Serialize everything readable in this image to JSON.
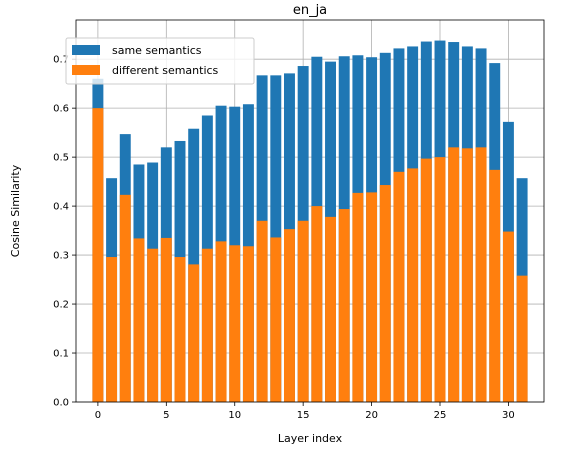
{
  "chart_data": {
    "type": "bar",
    "title": "en_ja",
    "xlabel": "Layer index",
    "ylabel": "Cosine Similarity",
    "xlim": [
      -1.6,
      32.6
    ],
    "ylim": [
      0,
      0.78
    ],
    "xticks": [
      0,
      5,
      10,
      15,
      20,
      25,
      30
    ],
    "yticks": [
      0.0,
      0.1,
      0.2,
      0.3,
      0.4,
      0.5,
      0.6,
      0.7
    ],
    "grid": true,
    "legend_position": "top-left",
    "x": [
      0,
      1,
      2,
      3,
      4,
      5,
      6,
      7,
      8,
      9,
      10,
      11,
      12,
      13,
      14,
      15,
      16,
      17,
      18,
      19,
      20,
      21,
      22,
      23,
      24,
      25,
      26,
      27,
      28,
      29,
      30,
      31
    ],
    "series": [
      {
        "name": "same semantics",
        "color": "#1f77b4",
        "values": [
          0.66,
          0.457,
          0.547,
          0.485,
          0.489,
          0.52,
          0.533,
          0.558,
          0.585,
          0.605,
          0.603,
          0.608,
          0.667,
          0.667,
          0.671,
          0.686,
          0.705,
          0.695,
          0.706,
          0.708,
          0.704,
          0.713,
          0.722,
          0.726,
          0.736,
          0.738,
          0.735,
          0.726,
          0.722,
          0.692,
          0.572,
          0.457
        ]
      },
      {
        "name": "different semantics",
        "color": "#ff7f0e",
        "values": [
          0.6,
          0.296,
          0.423,
          0.334,
          0.313,
          0.335,
          0.296,
          0.281,
          0.313,
          0.328,
          0.32,
          0.318,
          0.37,
          0.336,
          0.353,
          0.37,
          0.4,
          0.378,
          0.394,
          0.427,
          0.428,
          0.443,
          0.47,
          0.477,
          0.497,
          0.5,
          0.52,
          0.518,
          0.52,
          0.474,
          0.348,
          0.258
        ]
      }
    ]
  }
}
